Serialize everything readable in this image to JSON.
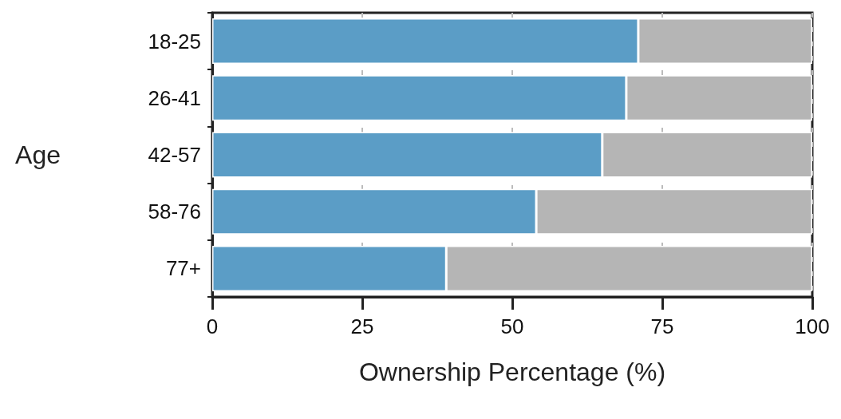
{
  "chart_data": {
    "type": "bar",
    "orientation": "horizontal",
    "stacked": true,
    "xlabel": "Ownership Percentage (%)",
    "ylabel": "Age",
    "categories": [
      "18-25",
      "26-41",
      "42-57",
      "58-76",
      "77+"
    ],
    "series": [
      {
        "color": "#5b9dc6",
        "values": [
          71,
          69,
          65,
          54,
          39
        ]
      },
      {
        "color": "#b5b5b5",
        "values": [
          29,
          31,
          35,
          46,
          61
        ]
      }
    ],
    "xlim": [
      0,
      100
    ],
    "xticks": [
      0,
      25,
      50,
      75,
      100
    ],
    "grid": "x"
  }
}
